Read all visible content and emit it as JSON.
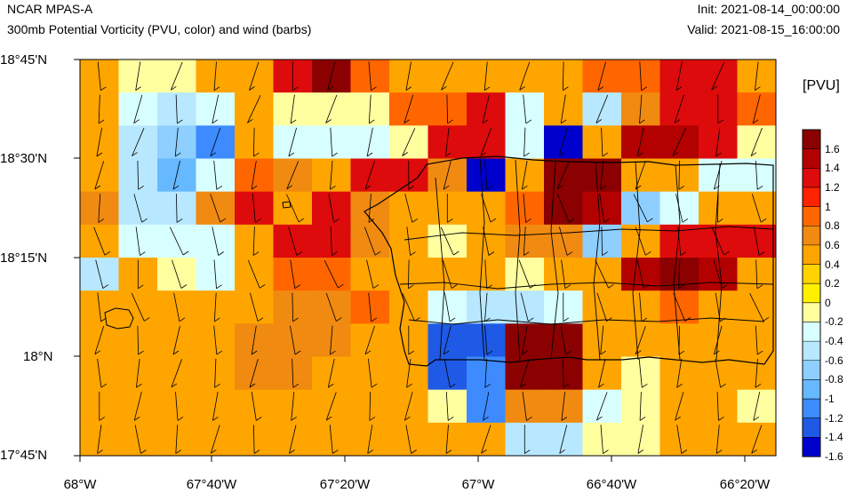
{
  "header": {
    "model": "NCAR MPAS-A",
    "description": "300mb Potential Vorticity (PVU, color) and wind (barbs)",
    "init": "Init: 2021-08-14_00:00:00",
    "valid": "Valid: 2021-08-15_16:00:00"
  },
  "axes": {
    "lat_labels": [
      "18°45'N",
      "18°30'N",
      "18°15'N",
      "18°N",
      "17°45'N"
    ],
    "lon_labels": [
      "68°W",
      "67°40'W",
      "67°20'W",
      "67°W",
      "66°40'W",
      "66°20'W"
    ]
  },
  "colorbar": {
    "unit": "[PVU]",
    "labels": [
      "1.6",
      "1.4",
      "1.2",
      "1",
      "0.8",
      "0.6",
      "0.4",
      "0.2",
      "0",
      "-0.2",
      "-0.4",
      "-0.6",
      "-0.8",
      "-1",
      "-1.2",
      "-1.4",
      "-1.6"
    ],
    "colors": [
      "#8b0000",
      "#b30000",
      "#dd0b0b",
      "#ff2200",
      "#ff6600",
      "#f08a10",
      "#ffa500",
      "#ffd200",
      "#fff000",
      "#ffffa0",
      "#d8ffff",
      "#b8e8ff",
      "#8ecfff",
      "#66b8ff",
      "#3d8bff",
      "#1f5ae6",
      "#0000cc"
    ]
  },
  "chart_data": {
    "type": "heatmap",
    "title": "300mb Potential Vorticity (PVU, color) and wind (barbs)",
    "lon_range": [
      "68°W",
      "66°15'W"
    ],
    "lat_range": [
      "17°45'N",
      "18°45'N"
    ],
    "units": "PVU",
    "grid": [
      [
        0.4,
        -0.2,
        -0.2,
        0.4,
        0.4,
        1.2,
        1.6,
        0.8,
        0.4,
        0.4,
        0.4,
        0.4,
        0.4,
        0.8,
        0.8,
        1.2,
        1.2,
        0.4
      ],
      [
        0.4,
        -0.4,
        -0.6,
        -0.4,
        0.4,
        -0.2,
        -0.2,
        -0.2,
        0.8,
        0.8,
        1.2,
        -0.4,
        0.4,
        -0.6,
        0.6,
        1.2,
        1.2,
        0.8
      ],
      [
        0.4,
        -0.6,
        -0.8,
        -1.2,
        0.4,
        -0.4,
        -0.4,
        -0.4,
        -0.2,
        1.2,
        1.2,
        -0.4,
        -1.6,
        0.4,
        1.4,
        1.4,
        1.2,
        -0.2
      ],
      [
        0.4,
        -0.6,
        -1.0,
        -0.4,
        0.8,
        0.6,
        0.4,
        1.2,
        1.2,
        0.6,
        -1.6,
        0.4,
        1.6,
        1.6,
        0.4,
        0.4,
        -0.4,
        -0.4
      ],
      [
        0.6,
        -0.6,
        -0.6,
        0.6,
        1.2,
        0.4,
        1.2,
        0.6,
        0.4,
        0.4,
        0.4,
        0.8,
        1.6,
        1.4,
        -0.8,
        -0.4,
        0.4,
        0.4
      ],
      [
        0.4,
        -0.4,
        -0.4,
        -0.4,
        0.4,
        1.2,
        1.2,
        0.6,
        0.4,
        -0.2,
        0.4,
        0.6,
        0.6,
        -0.8,
        0.4,
        1.2,
        1.2,
        1.2
      ],
      [
        -0.6,
        0.4,
        -0.2,
        -0.4,
        0.4,
        0.8,
        0.8,
        0.4,
        0.4,
        0.4,
        0.4,
        -0.2,
        0.4,
        0.4,
        1.4,
        1.6,
        1.4,
        0.4
      ],
      [
        0.4,
        0.4,
        0.4,
        0.4,
        0.4,
        0.6,
        0.6,
        0.8,
        0.4,
        -0.4,
        -0.6,
        -0.6,
        -0.4,
        0.4,
        0.4,
        0.8,
        0.4,
        0.4
      ],
      [
        0.4,
        0.4,
        0.4,
        0.4,
        0.6,
        0.6,
        0.6,
        0.4,
        0.4,
        -1.4,
        -1.4,
        1.6,
        1.6,
        0.4,
        0.4,
        0.4,
        0.4,
        0.4
      ],
      [
        0.4,
        0.4,
        0.4,
        0.4,
        0.6,
        0.6,
        0.4,
        0.4,
        0.4,
        -1.4,
        -1.2,
        1.6,
        1.6,
        0.4,
        -0.2,
        0.4,
        0.4,
        0.4
      ],
      [
        0.4,
        0.4,
        0.4,
        0.4,
        0.4,
        0.4,
        0.4,
        0.4,
        0.4,
        -0.2,
        -1.2,
        0.6,
        0.6,
        -0.4,
        -0.2,
        0.4,
        0.4,
        -0.2
      ],
      [
        0.4,
        0.4,
        0.4,
        0.4,
        0.4,
        0.4,
        0.4,
        0.4,
        0.4,
        0.4,
        0.4,
        -0.6,
        -0.6,
        -0.2,
        -0.2,
        0.4,
        0.4,
        0.4
      ]
    ]
  }
}
